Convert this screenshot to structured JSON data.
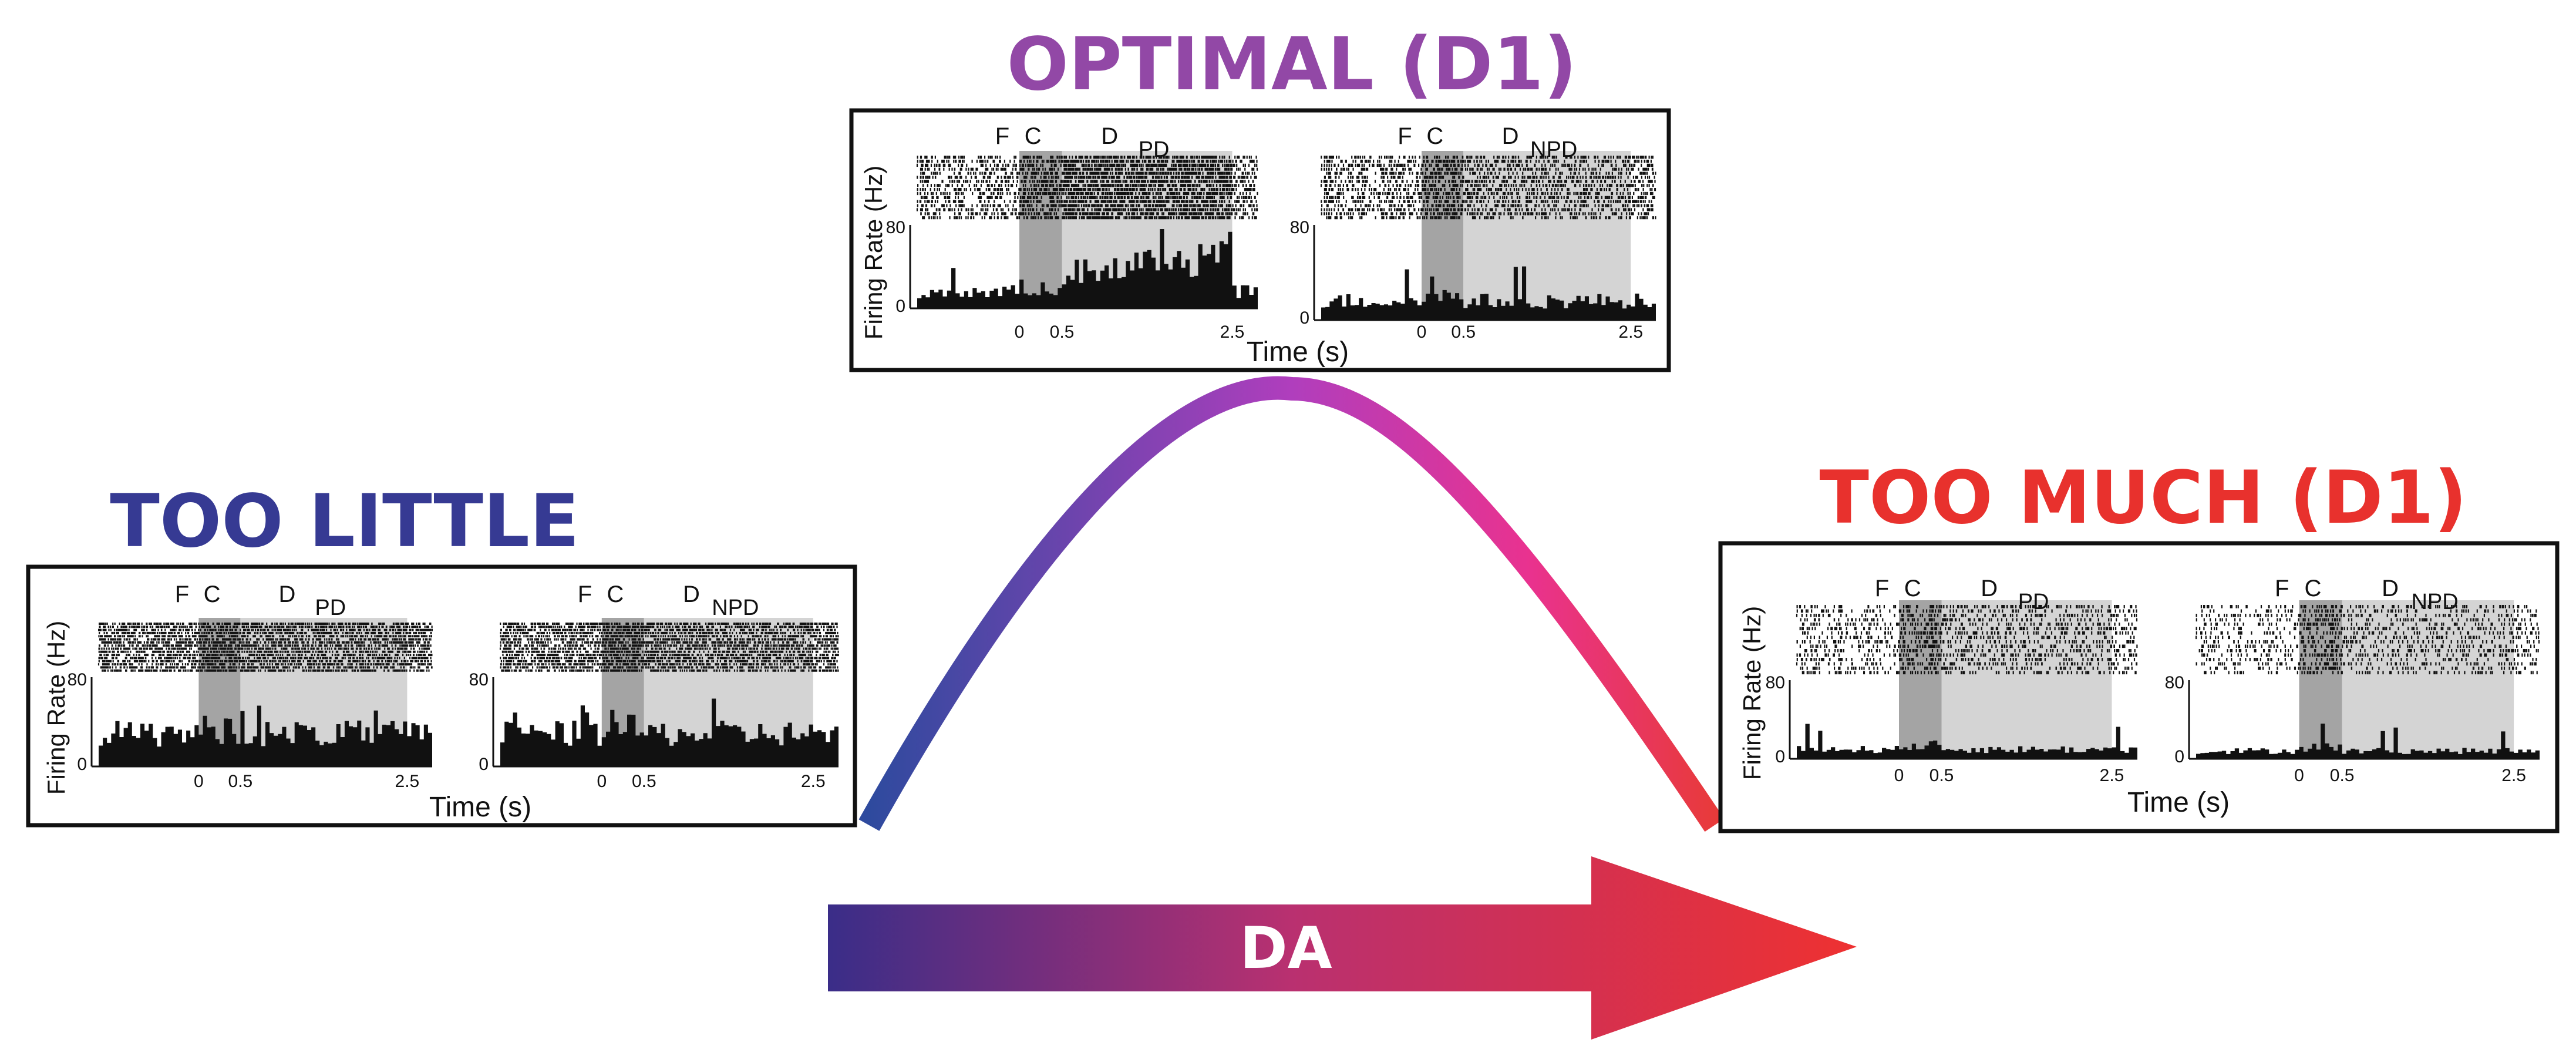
{
  "colors": {
    "too_little": "#363a93",
    "optimal": "#9248a6",
    "too_much": "#e8312d",
    "curve_start": "#2e4a9e",
    "curve_mid": "#b03ebd",
    "curve_hot": "#e9328f",
    "curve_end": "#e83a3a",
    "arrow_start": "#3a2d88",
    "arrow_mid": "#b93070",
    "arrow_end": "#ee3131"
  },
  "arrow": {
    "label": "DA"
  },
  "panels": [
    {
      "id": "too-little",
      "title": "TOO LITTLE",
      "title_color": "#363a93",
      "y_axis_label": "Firing Rate (Hz)",
      "x_axis_label": "Time (s)",
      "subplots": [
        {
          "condition": "PD",
          "events": [
            "F",
            "C",
            "D"
          ],
          "y_ticks": [
            "80",
            "0"
          ],
          "x_ticks": [
            "0",
            "0.5",
            "2.5"
          ],
          "activity": 0.55,
          "delay_boost": 0.0
        },
        {
          "condition": "NPD",
          "events": [
            "F",
            "C",
            "D"
          ],
          "y_ticks": [
            "80",
            "0"
          ],
          "x_ticks": [
            "0",
            "0.5",
            "2.5"
          ],
          "activity": 0.55,
          "delay_boost": 0.0
        }
      ]
    },
    {
      "id": "optimal",
      "title": "OPTIMAL (D1)",
      "title_color": "#9248a6",
      "y_axis_label": "Firing Rate (Hz)",
      "x_axis_label": "Time (s)",
      "subplots": [
        {
          "condition": "PD",
          "events": [
            "F",
            "C",
            "D"
          ],
          "y_ticks": [
            "80",
            "0"
          ],
          "x_ticks": [
            "0",
            "0.5",
            "2.5"
          ],
          "activity": 0.3,
          "delay_boost": 0.45
        },
        {
          "condition": "NPD",
          "events": [
            "F",
            "C",
            "D"
          ],
          "y_ticks": [
            "80",
            "0"
          ],
          "x_ticks": [
            "0",
            "0.5",
            "2.5"
          ],
          "activity": 0.3,
          "delay_boost": 0.0
        }
      ]
    },
    {
      "id": "too-much",
      "title": "TOO MUCH (D1)",
      "title_color": "#e8312d",
      "y_axis_label": "Firing Rate (Hz)",
      "x_axis_label": "Time (s)",
      "subplots": [
        {
          "condition": "PD",
          "events": [
            "F",
            "C",
            "D"
          ],
          "y_ticks": [
            "80",
            "0"
          ],
          "x_ticks": [
            "0",
            "0.5",
            "2.5"
          ],
          "activity": 0.18,
          "delay_boost": 0.0
        },
        {
          "condition": "NPD",
          "events": [
            "F",
            "C",
            "D"
          ],
          "y_ticks": [
            "80",
            "0"
          ],
          "x_ticks": [
            "0",
            "0.5",
            "2.5"
          ],
          "activity": 0.15,
          "delay_boost": 0.0
        }
      ]
    }
  ]
}
